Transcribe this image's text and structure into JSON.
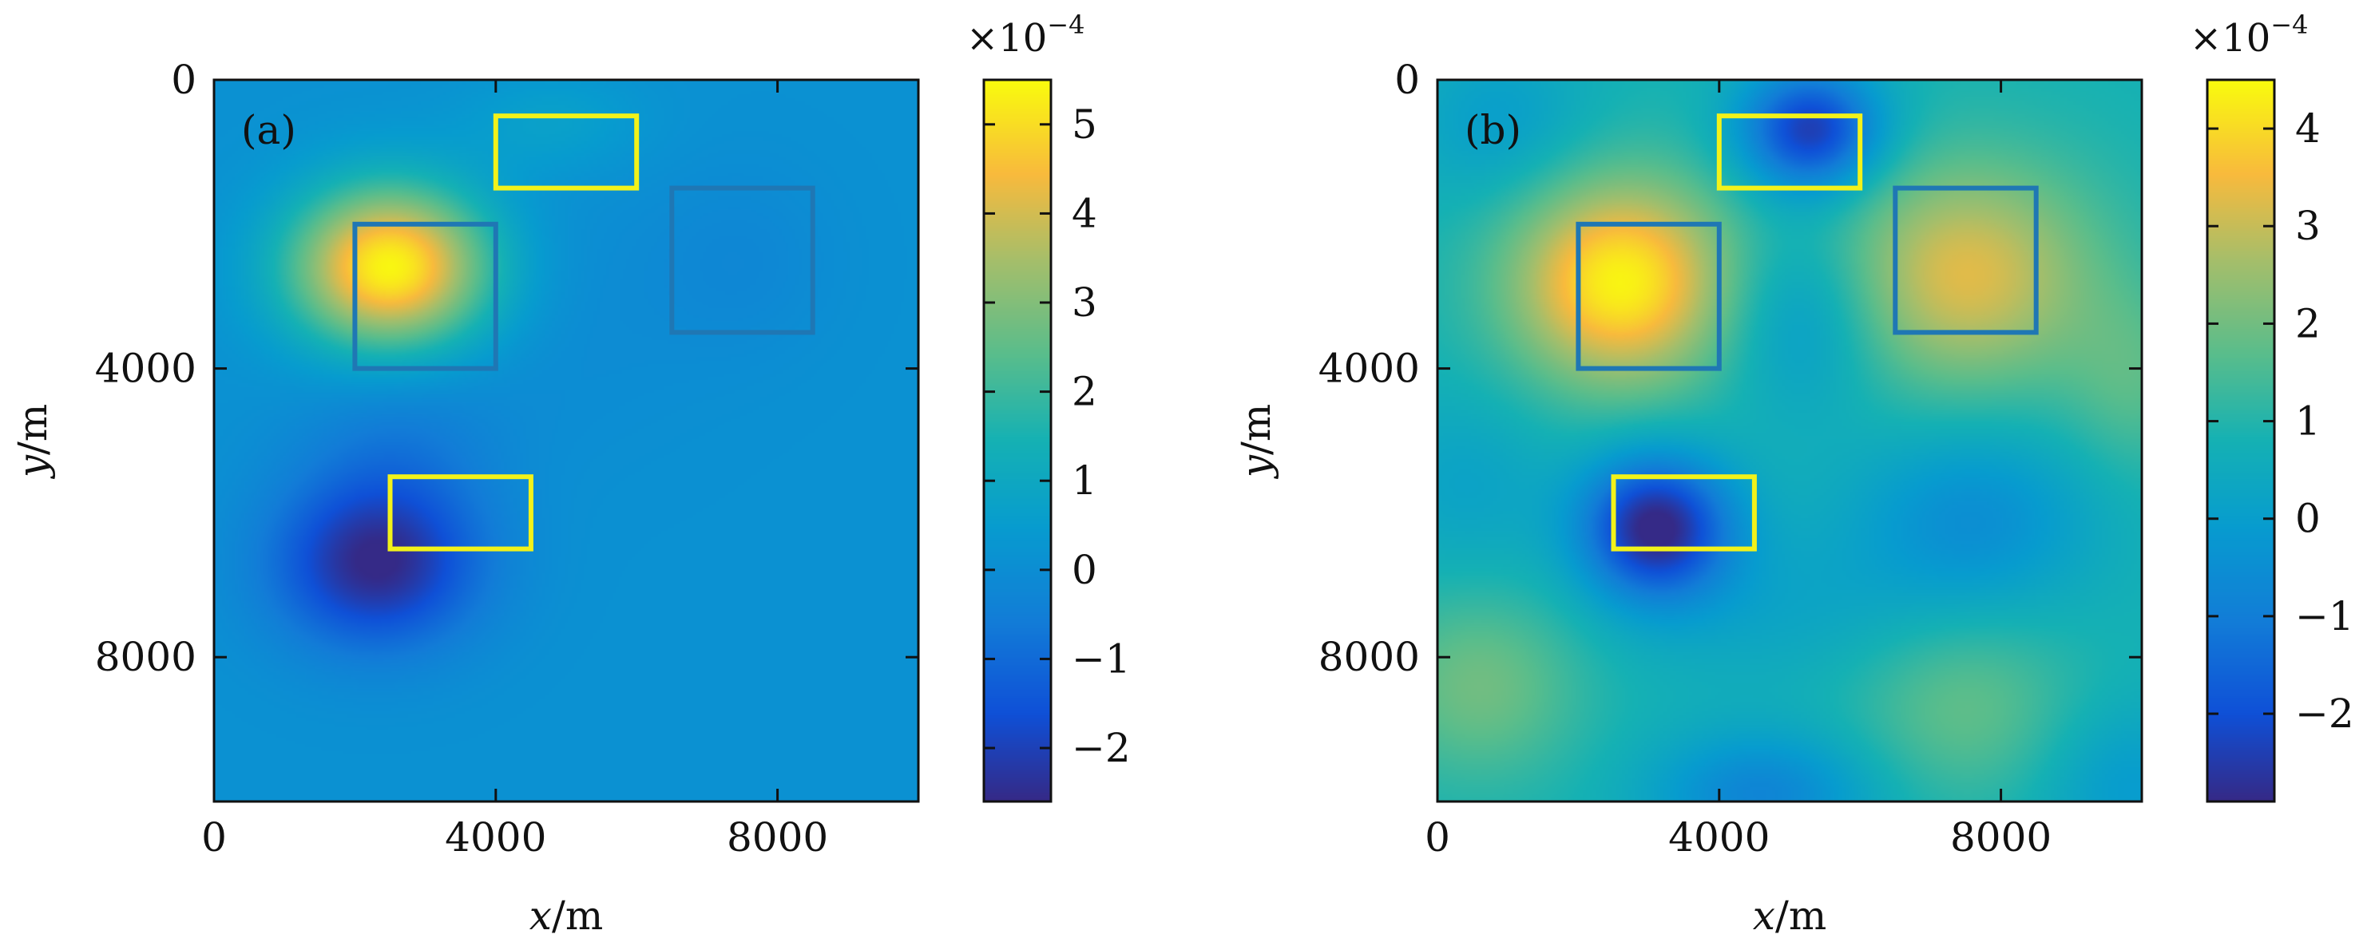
{
  "chart_data": [
    {
      "type": "heatmap",
      "panel_label": "(a)",
      "xlabel": "x/m",
      "ylabel": "y/m",
      "xlim": [
        0,
        10000
      ],
      "ylim": [
        0,
        10000
      ],
      "y_inverted": true,
      "xticks": [
        0,
        4000,
        8000
      ],
      "yticks": [
        0,
        4000,
        8000
      ],
      "colorbar": {
        "min": -2.6,
        "max": 5.5,
        "ticks": [
          5,
          4,
          3,
          2,
          1,
          0,
          -1,
          -2
        ],
        "tick_labels": [
          "5",
          "4",
          "3",
          "2",
          "1",
          "0",
          "−1",
          "−2"
        ],
        "exponent_label": {
          "base": "×10",
          "power": "−4"
        }
      },
      "baseline": 0.1,
      "anomalies": [
        {
          "x": 2500,
          "y": 2600,
          "sx": 1000,
          "sy": 800,
          "amp": 5.4
        },
        {
          "x": 4800,
          "y": 600,
          "sx": 900,
          "sy": 500,
          "amp": 0.6
        },
        {
          "x": 2300,
          "y": 6700,
          "sx": 1000,
          "sy": 800,
          "amp": -2.7
        },
        {
          "x": 2600,
          "y": 5000,
          "sx": 1000,
          "sy": 900,
          "amp": -0.6
        },
        {
          "x": 7500,
          "y": 2500,
          "sx": 900,
          "sy": 900,
          "amp": -0.3
        },
        {
          "x": 4800,
          "y": 3200,
          "sx": 1600,
          "sy": 1400,
          "amp": -0.2
        }
      ],
      "boxes": [
        {
          "x0": 4000,
          "x1": 6000,
          "y0": 500,
          "y1": 1500,
          "color": "#f2f21a"
        },
        {
          "x0": 2000,
          "x1": 4000,
          "y0": 2000,
          "y1": 4000,
          "color": "#1f77b4"
        },
        {
          "x0": 6500,
          "x1": 8500,
          "y0": 1500,
          "y1": 3500,
          "color": "#1f77b4"
        },
        {
          "x0": 2500,
          "x1": 4500,
          "y0": 5500,
          "y1": 6500,
          "color": "#f2f21a"
        }
      ]
    },
    {
      "type": "heatmap",
      "panel_label": "(b)",
      "xlabel": "x/m",
      "ylabel": "y/m",
      "xlim": [
        0,
        10000
      ],
      "ylim": [
        0,
        10000
      ],
      "y_inverted": true,
      "xticks": [
        0,
        4000,
        8000
      ],
      "yticks": [
        0,
        4000,
        8000
      ],
      "colorbar": {
        "min": -2.9,
        "max": 4.5,
        "ticks": [
          4,
          3,
          2,
          1,
          0,
          -1,
          -2
        ],
        "tick_labels": [
          "4",
          "3",
          "2",
          "1",
          "0",
          "−1",
          "−2"
        ],
        "exponent_label": {
          "base": "×10",
          "power": "−4"
        }
      },
      "baseline": 0.8,
      "anomalies": [
        {
          "x": 2600,
          "y": 2800,
          "sx": 1100,
          "sy": 1000,
          "amp": 3.6
        },
        {
          "x": 7500,
          "y": 2700,
          "sx": 1300,
          "sy": 1100,
          "amp": 2.5
        },
        {
          "x": 5300,
          "y": 700,
          "sx": 700,
          "sy": 600,
          "amp": -3.3
        },
        {
          "x": 3100,
          "y": 6200,
          "sx": 750,
          "sy": 700,
          "amp": -3.8
        },
        {
          "x": 5200,
          "y": 3300,
          "sx": 800,
          "sy": 900,
          "amp": -1.1
        },
        {
          "x": 7600,
          "y": 6100,
          "sx": 1200,
          "sy": 900,
          "amp": -1.3
        },
        {
          "x": 4800,
          "y": 7300,
          "sx": 1500,
          "sy": 800,
          "amp": -0.5
        },
        {
          "x": 400,
          "y": 5600,
          "sx": 900,
          "sy": 900,
          "amp": -0.6
        },
        {
          "x": 4600,
          "y": 9900,
          "sx": 1100,
          "sy": 600,
          "amp": -1.6
        },
        {
          "x": 900,
          "y": 600,
          "sx": 900,
          "sy": 800,
          "amp": -0.8
        },
        {
          "x": 9800,
          "y": 9800,
          "sx": 900,
          "sy": 800,
          "amp": -0.9
        },
        {
          "x": 600,
          "y": 8400,
          "sx": 1000,
          "sy": 900,
          "amp": 1.2
        },
        {
          "x": 7500,
          "y": 8700,
          "sx": 1100,
          "sy": 900,
          "amp": 1.0
        },
        {
          "x": 9900,
          "y": 4200,
          "sx": 700,
          "sy": 900,
          "amp": 0.8
        }
      ],
      "boxes": [
        {
          "x0": 4000,
          "x1": 6000,
          "y0": 500,
          "y1": 1500,
          "color": "#f2f21a"
        },
        {
          "x0": 2000,
          "x1": 4000,
          "y0": 2000,
          "y1": 4000,
          "color": "#1f77b4"
        },
        {
          "x0": 6500,
          "x1": 8500,
          "y0": 1500,
          "y1": 3500,
          "color": "#1f77b4"
        },
        {
          "x0": 2500,
          "x1": 4500,
          "y0": 5500,
          "y1": 6500,
          "color": "#f2f21a"
        }
      ]
    }
  ]
}
